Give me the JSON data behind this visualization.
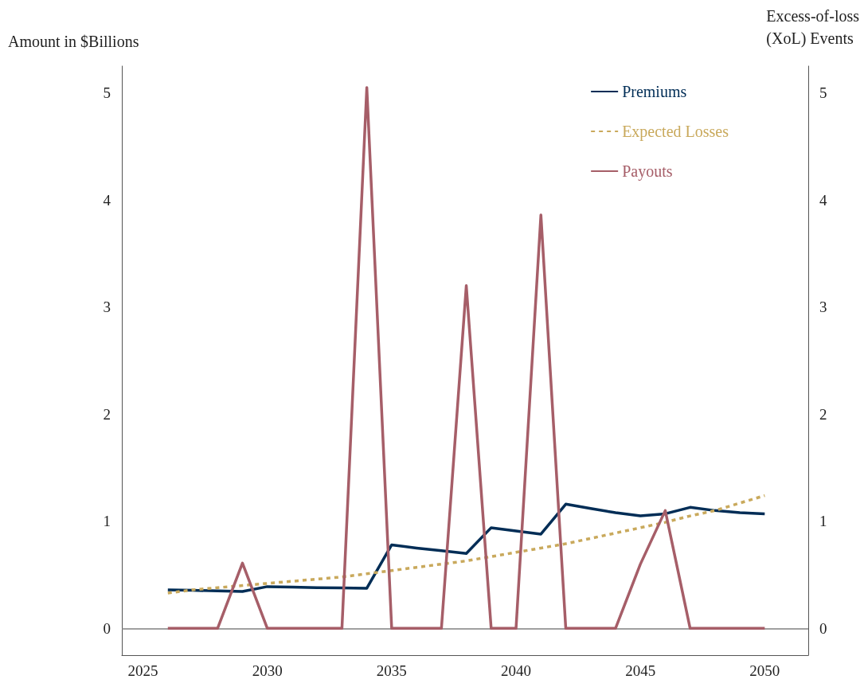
{
  "chart_data": {
    "type": "line",
    "ylabel": "Amount in $Billions",
    "y2label": "Excess-of-loss (XoL) Events",
    "x": [
      2026,
      2027,
      2028,
      2029,
      2030,
      2031,
      2032,
      2033,
      2034,
      2035,
      2036,
      2037,
      2038,
      2039,
      2040,
      2041,
      2042,
      2043,
      2044,
      2045,
      2046,
      2047,
      2048,
      2049,
      2050
    ],
    "series": [
      {
        "name": "Premiums",
        "color": "#002d56",
        "line_style": "solid",
        "values": [
          0.36,
          0.355,
          0.35,
          0.345,
          0.39,
          0.385,
          0.38,
          0.378,
          0.375,
          0.78,
          0.75,
          0.725,
          0.7,
          0.94,
          0.91,
          0.88,
          1.16,
          1.12,
          1.08,
          1.05,
          1.07,
          1.13,
          1.1,
          1.08,
          1.07
        ]
      },
      {
        "name": "Expected Losses",
        "color": "#c9a95c",
        "line_style": "dashed",
        "values": [
          0.33,
          0.36,
          0.38,
          0.4,
          0.42,
          0.44,
          0.46,
          0.48,
          0.51,
          0.54,
          0.57,
          0.6,
          0.63,
          0.67,
          0.71,
          0.75,
          0.79,
          0.84,
          0.89,
          0.94,
          0.99,
          1.05,
          1.1,
          1.17,
          1.24
        ]
      },
      {
        "name": "Payouts",
        "color": "#a65e68",
        "line_style": "solid",
        "values": [
          0,
          0,
          0,
          0.61,
          0,
          0,
          0,
          0,
          5.05,
          0,
          0,
          0,
          3.2,
          0,
          0,
          3.86,
          0,
          0,
          0,
          0.6,
          1.1,
          0,
          0,
          0,
          0
        ]
      }
    ],
    "xlim": [
      2024.15,
      2051.75
    ],
    "xticks": [
      2025,
      2030,
      2035,
      2040,
      2045,
      2050
    ],
    "ylim": [
      -0.25,
      5.25
    ],
    "yticks": [
      0,
      1,
      2,
      3,
      4,
      5
    ],
    "y2lim": [
      -0.25,
      5.25
    ],
    "y2ticks": [
      0,
      1,
      2,
      3,
      4,
      5
    ],
    "ref_lines": [
      {
        "axis": "y",
        "value": 0,
        "color": "#808080"
      }
    ],
    "grid": false,
    "legend": "top right",
    "marker": "none"
  }
}
